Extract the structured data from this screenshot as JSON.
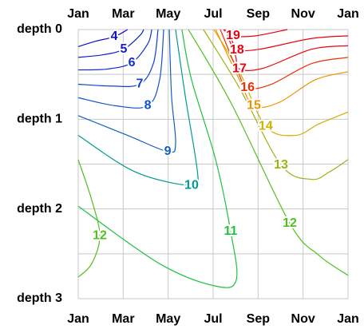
{
  "chart_data": {
    "type": "contour",
    "xlim": [
      0,
      12
    ],
    "ylim": [
      3,
      0
    ],
    "xticks": [
      {
        "value": 0,
        "label": "Jan"
      },
      {
        "value": 2,
        "label": "Mar"
      },
      {
        "value": 4,
        "label": "May"
      },
      {
        "value": 6,
        "label": "Jul"
      },
      {
        "value": 8,
        "label": "Sep"
      },
      {
        "value": 10,
        "label": "Nov"
      },
      {
        "value": 12,
        "label": "Jan"
      }
    ],
    "yticks": [
      {
        "value": 0,
        "label": "depth 0"
      },
      {
        "value": 1,
        "label": "depth 1"
      },
      {
        "value": 2,
        "label": "depth 2"
      },
      {
        "value": 3,
        "label": "depth 3"
      }
    ],
    "yminorticks": [
      0.5,
      1.5,
      2.5
    ],
    "grid": true,
    "series": [
      {
        "level": 4,
        "color": "#1010c8",
        "x": [
          0,
          0.78,
          1.6,
          2.2
        ],
        "y": [
          0.19,
          0.13,
          0.08,
          0
        ]
      },
      {
        "level": 5,
        "color": "#1020cc",
        "x": [
          0,
          1.14,
          2.02,
          2.73,
          2.91
        ],
        "y": [
          0.31,
          0.28,
          0.22,
          0.07,
          0
        ]
      },
      {
        "level": 6,
        "color": "#1030cc",
        "x": [
          0,
          1.31,
          2.38,
          3.09,
          3.27
        ],
        "y": [
          0.45,
          0.44,
          0.37,
          0.16,
          0
        ]
      },
      {
        "level": 7,
        "color": "#1040cc",
        "x": [
          0,
          1.49,
          2.73,
          3.34,
          3.55
        ],
        "y": [
          0.61,
          0.63,
          0.61,
          0.38,
          0
        ]
      },
      {
        "level": 8,
        "color": "#1050cc",
        "x": [
          0,
          1.67,
          3.09,
          3.62,
          3.8
        ],
        "y": [
          0.76,
          0.85,
          0.85,
          0.56,
          0
        ]
      },
      {
        "level": 9,
        "color": "#1060c0",
        "x": [
          0,
          2.2,
          3.98,
          4.33,
          4.15,
          4.05
        ],
        "y": [
          0.96,
          1.18,
          1.36,
          1.27,
          0.74,
          0
        ]
      },
      {
        "level": 10,
        "color": "#009a90",
        "x": [
          0,
          2.56,
          5.04,
          5.32,
          4.76,
          4.33
        ],
        "y": [
          1.18,
          1.59,
          1.74,
          1.63,
          0.74,
          0
        ]
      },
      {
        "level": 11,
        "color": "#20c040",
        "x": [
          0,
          3.62,
          6.11,
          7.03,
          6.78,
          6.11,
          5.04,
          4.61
        ],
        "y": [
          1.97,
          2.61,
          2.86,
          2.79,
          2.25,
          1.45,
          0.56,
          0
        ]
      },
      {
        "level": 12,
        "color": "#50c020",
        "x": [
          0,
          0.6,
          0.96,
          0.6,
          0
        ],
        "y": [
          1.45,
          1.9,
          2.3,
          2.61,
          2.76
        ]
      },
      {
        "level": 12,
        "color": "#50c020",
        "x": [
          4.9,
          6.82,
          9.41,
          10.72,
          12
        ],
        "y": [
          0,
          0.83,
          2.16,
          2.52,
          2.74
        ]
      },
      {
        "level": 13,
        "color": "#a0b010",
        "x": [
          5.57,
          7.17,
          9.02,
          10.37,
          11.15,
          12
        ],
        "y": [
          0,
          0.65,
          1.51,
          1.67,
          1.59,
          1.45
        ]
      },
      {
        "level": 14,
        "color": "#d0b000",
        "x": [
          6.03,
          7.17,
          8.34,
          9.66,
          10.72,
          12
        ],
        "y": [
          0,
          0.47,
          1.08,
          1.18,
          1.05,
          0.92
        ]
      },
      {
        "level": 15,
        "color": "#f09000",
        "x": [
          6.11,
          7.17,
          7.81,
          8.95,
          10.54,
          12
        ],
        "y": [
          0,
          0.56,
          0.85,
          0.81,
          0.56,
          0.47
        ]
      },
      {
        "level": 16,
        "color": "#f03000",
        "x": [
          6.32,
          7.1,
          7.53,
          8.59,
          10.37,
          12
        ],
        "y": [
          0,
          0.47,
          0.65,
          0.61,
          0.38,
          0.31
        ]
      },
      {
        "level": 17,
        "color": "#f00010",
        "x": [
          6.53,
          6.99,
          7.17,
          8.24,
          10.37,
          12
        ],
        "y": [
          0,
          0.29,
          0.44,
          0.43,
          0.22,
          0.18
        ]
      },
      {
        "level": 18,
        "color": "#ec0010",
        "x": [
          6.71,
          6.89,
          7.06,
          8.06,
          10.37,
          12
        ],
        "y": [
          0,
          0.16,
          0.23,
          0.22,
          0.1,
          0.07
        ]
      },
      {
        "level": 19,
        "color": "#e80010",
        "x": [
          6.46,
          6.89,
          7.88,
          9.3
        ],
        "y": [
          0,
          0.07,
          0.07,
          0
        ]
      }
    ]
  }
}
